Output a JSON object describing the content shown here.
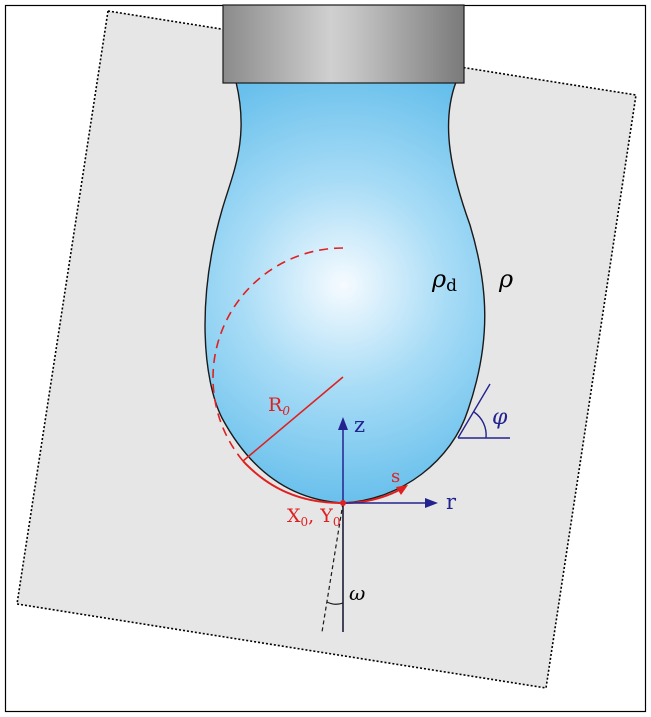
{
  "labels": {
    "rho_d": "ρ",
    "rho_d_sub": "d",
    "rho": "ρ",
    "phi": "φ",
    "R0": "R",
    "R0_sub": "0",
    "z_axis": "z",
    "r_axis": "r",
    "s_arc": "s",
    "x0": "X",
    "x0_sub": "0",
    "comma": ", ",
    "y0": "Y",
    "y0_sub": "0",
    "omega": "ω"
  },
  "colors": {
    "border": "#000000",
    "plane_fill": "#e6e6e6",
    "drop_light": "#f4fbff",
    "drop_dark": "#6cc3ef",
    "needle_light": "#c8c8c8",
    "needle_dark": "#808080",
    "red": "#e02020",
    "blue": "#23238f",
    "text_dark": "#000000"
  }
}
